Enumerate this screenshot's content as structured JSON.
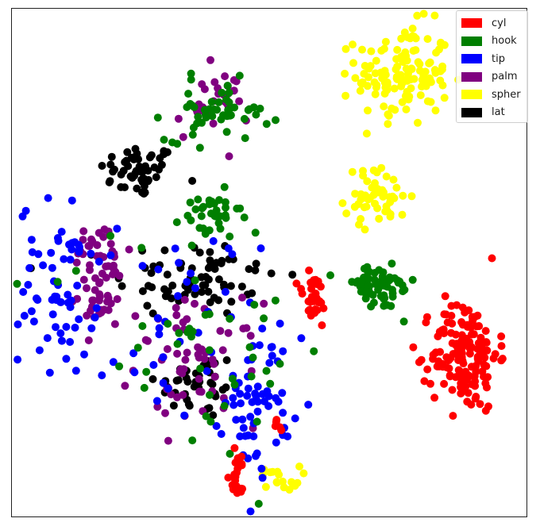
{
  "chart_data": {
    "type": "scatter",
    "title": "",
    "xlabel": "",
    "ylabel": "",
    "xlim": [
      0,
      100
    ],
    "ylim": [
      0,
      100
    ],
    "grid": false,
    "axes_ticks": false,
    "legend_position": "top-right",
    "series": [
      {
        "name": "cyl",
        "color": "#ff0000",
        "clusters": [
          {
            "x": 88,
            "y": 32,
            "sx": 3.2,
            "sy": 5.5,
            "n": 150
          },
          {
            "x": 58.5,
            "y": 42.5,
            "sx": 1.6,
            "sy": 3.0,
            "n": 30
          },
          {
            "x": 44,
            "y": 8.5,
            "sx": 1.2,
            "sy": 2.4,
            "n": 20
          },
          {
            "x": 52,
            "y": 17.5,
            "sx": 0.6,
            "sy": 1.0,
            "n": 5
          }
        ]
      },
      {
        "name": "hook",
        "color": "#007f00",
        "clusters": [
          {
            "x": 71,
            "y": 45,
            "sx": 3.8,
            "sy": 2.2,
            "n": 60
          },
          {
            "x": 40,
            "y": 80,
            "sx": 5.0,
            "sy": 3.0,
            "n": 50
          },
          {
            "x": 38.5,
            "y": 59,
            "sx": 3.0,
            "sy": 2.4,
            "n": 35
          },
          {
            "x": 35,
            "y": 34,
            "sx": 14,
            "sy": 12,
            "n": 45
          }
        ]
      },
      {
        "name": "tip",
        "color": "#0000ff",
        "clusters": [
          {
            "x": 9,
            "y": 46,
            "sx": 3.8,
            "sy": 8,
            "n": 60
          },
          {
            "x": 48,
            "y": 23,
            "sx": 3.2,
            "sy": 7,
            "n": 60
          },
          {
            "x": 30,
            "y": 37,
            "sx": 9,
            "sy": 10,
            "n": 45
          }
        ]
      },
      {
        "name": "palm",
        "color": "#800080",
        "clusters": [
          {
            "x": 39,
            "y": 81,
            "sx": 3.5,
            "sy": 3.5,
            "n": 30
          },
          {
            "x": 17,
            "y": 44,
            "sx": 2.5,
            "sy": 4,
            "n": 40
          },
          {
            "x": 36,
            "y": 30,
            "sx": 6,
            "sy": 6,
            "n": 60
          },
          {
            "x": 17,
            "y": 52,
            "sx": 3.0,
            "sy": 3.0,
            "n": 25
          }
        ]
      },
      {
        "name": "spher",
        "color": "#ffff00",
        "clusters": [
          {
            "x": 76,
            "y": 87,
            "sx": 4.5,
            "sy": 5.0,
            "n": 130
          },
          {
            "x": 71,
            "y": 63,
            "sx": 3.2,
            "sy": 2.8,
            "n": 50
          },
          {
            "x": 52,
            "y": 7.5,
            "sx": 2.0,
            "sy": 1.2,
            "n": 18
          }
        ]
      },
      {
        "name": "lat",
        "color": "#000000",
        "clusters": [
          {
            "x": 24.5,
            "y": 68,
            "sx": 3.8,
            "sy": 2.6,
            "n": 50
          },
          {
            "x": 36,
            "y": 47,
            "sx": 8,
            "sy": 4,
            "n": 70
          },
          {
            "x": 36,
            "y": 26,
            "sx": 4,
            "sy": 3.5,
            "n": 40
          }
        ]
      }
    ]
  }
}
